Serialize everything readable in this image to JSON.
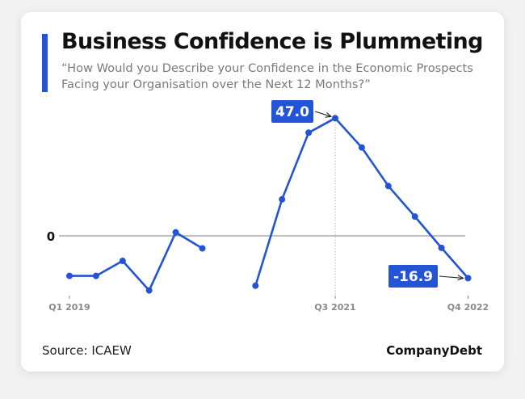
{
  "title": "Business Confidence is Plummeting",
  "subtitle": "“How Would you Describe your Confidence in the Economic Prospects Facing your Organisation over the Next 12 Months?”",
  "source": "Source: ICAEW",
  "brand": "CompanyDebt",
  "colors": {
    "line": "#2354d6",
    "label_bg": "#2354d6",
    "accent": "#2354d6"
  },
  "chart_data": {
    "type": "line",
    "x_ticks": [
      "Q1 2019",
      "Q3 2021",
      "Q4 2022"
    ],
    "zero_label": "0",
    "series": [
      {
        "segments": [
          [
            {
              "x": "Q1 2019",
              "y": -16.0
            },
            {
              "x": "Q2 2019",
              "y": -16.0
            },
            {
              "x": "Q3 2019",
              "y": -10.0
            },
            {
              "x": "Q4 2019",
              "y": -21.8
            },
            {
              "x": "Q1 2020",
              "y": 1.4
            },
            {
              "x": "Q2 2020",
              "y": -5.0
            }
          ],
          [
            {
              "x": "Q4 2020",
              "y": -19.9
            },
            {
              "x": "Q1 2021",
              "y": 14.6
            },
            {
              "x": "Q2 2021",
              "y": 41.2
            },
            {
              "x": "Q3 2021",
              "y": 47.0
            },
            {
              "x": "Q4 2021",
              "y": 35.3
            },
            {
              "x": "Q1 2022",
              "y": 19.9
            },
            {
              "x": "Q2 2022",
              "y": 7.7
            },
            {
              "x": "Q3 2022",
              "y": -4.8
            },
            {
              "x": "Q4 2022",
              "y": -16.9
            }
          ]
        ]
      }
    ],
    "annotations": [
      {
        "x": "Q3 2021",
        "text": "47.0"
      },
      {
        "x": "Q4 2022",
        "text": "-16.9"
      }
    ]
  }
}
